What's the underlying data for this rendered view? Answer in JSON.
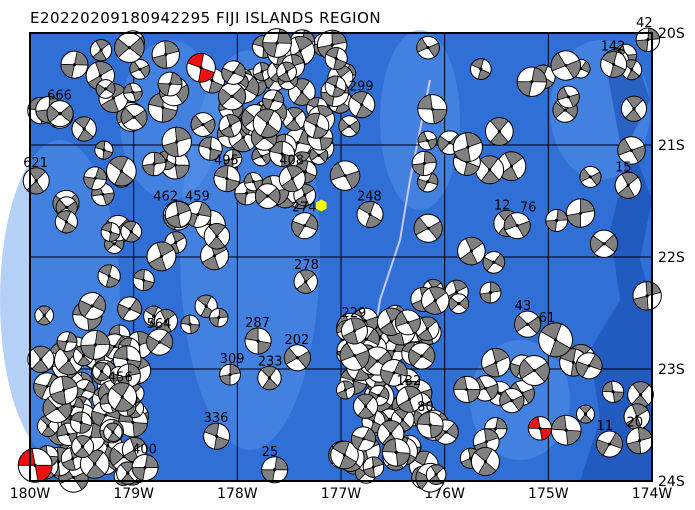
{
  "title": "E20220209180942295 FIJI ISLANDS REGION",
  "map": {
    "lon_range_w": [
      180,
      174
    ],
    "lat_range_s": [
      20,
      24
    ],
    "lon_ticks": [
      "180W",
      "179W",
      "178W",
      "177W",
      "176W",
      "175W",
      "174W"
    ],
    "lat_ticks": [
      "20S",
      "21S",
      "22S",
      "23S",
      "24S"
    ],
    "ocean_color": "#2f6fd6",
    "ridge_color": "#5b96ea",
    "grid_color": "#000000",
    "epicenter": {
      "lon_w": 176.9,
      "lat_s": 21.54,
      "color": "#ffff00",
      "symbol": "hexagon"
    },
    "mechanism_colors": {
      "compressional": "#808080",
      "dilatational": "#ffffff",
      "highlight": "#ee1111"
    }
  },
  "events": [
    {
      "label": "248",
      "lon_w": 176.72,
      "lat_s": 21.62,
      "size": 1,
      "rot": 30
    },
    {
      "label": "274",
      "lon_w": 177.35,
      "lat_s": 21.72,
      "size": 1,
      "rot": 120
    },
    {
      "label": "278",
      "lon_w": 177.34,
      "lat_s": 22.22,
      "size": 0.9,
      "rot": 60
    },
    {
      "label": "287",
      "lon_w": 177.8,
      "lat_s": 22.75,
      "size": 1,
      "rot": 10
    },
    {
      "label": "309",
      "lon_w": 178.07,
      "lat_s": 23.05,
      "size": 0.8,
      "rot": 90
    },
    {
      "label": "233",
      "lon_w": 177.69,
      "lat_s": 23.08,
      "size": 0.9,
      "rot": 45
    },
    {
      "label": "202",
      "lon_w": 177.42,
      "lat_s": 22.9,
      "size": 1,
      "rot": 150
    },
    {
      "label": "229",
      "lon_w": 176.87,
      "lat_s": 22.66,
      "size": 1,
      "rot": 75
    },
    {
      "label": "336",
      "lon_w": 178.2,
      "lat_s": 23.6,
      "size": 1,
      "rot": 20
    },
    {
      "label": "400",
      "lon_w": 178.89,
      "lat_s": 23.88,
      "size": 1,
      "rot": 100
    },
    {
      "label": "456",
      "lon_w": 179.11,
      "lat_s": 23.25,
      "size": 1.1,
      "rot": 40
    },
    {
      "label": "564",
      "lon_w": 178.75,
      "lat_s": 22.76,
      "size": 1,
      "rot": 130
    },
    {
      "label": "408",
      "lon_w": 177.47,
      "lat_s": 21.3,
      "size": 1,
      "rot": 65
    },
    {
      "label": "495",
      "lon_w": 178.1,
      "lat_s": 21.3,
      "size": 1,
      "rot": 15
    },
    {
      "label": "459",
      "lon_w": 178.38,
      "lat_s": 21.62,
      "size": 1,
      "rot": 110
    },
    {
      "label": "462",
      "lon_w": 178.57,
      "lat_s": 21.62,
      "size": 1,
      "rot": 80
    },
    {
      "label": "299",
      "lon_w": 176.8,
      "lat_s": 20.64,
      "size": 1,
      "rot": 35
    },
    {
      "label": "621",
      "lon_w": 179.94,
      "lat_s": 21.32,
      "size": 1,
      "rot": 55
    },
    {
      "label": "666",
      "lon_w": 179.71,
      "lat_s": 20.72,
      "size": 1,
      "rot": 140
    },
    {
      "label": "142",
      "lon_w": 174.37,
      "lat_s": 20.28,
      "size": 1,
      "rot": 25
    },
    {
      "label": "42",
      "lon_w": 174.04,
      "lat_s": 20.06,
      "size": 0.9,
      "rot": 95
    },
    {
      "label": "12",
      "lon_w": 175.4,
      "lat_s": 21.7,
      "size": 1,
      "rot": 50
    },
    {
      "label": "76",
      "lon_w": 175.3,
      "lat_s": 21.72,
      "size": 1,
      "rot": 160
    },
    {
      "label": "132",
      "lon_w": 176.34,
      "lat_s": 23.27,
      "size": 1,
      "rot": 70
    },
    {
      "label": "80",
      "lon_w": 176.14,
      "lat_s": 23.5,
      "size": 1,
      "rot": 5
    },
    {
      "label": "11",
      "lon_w": 174.41,
      "lat_s": 23.67,
      "size": 1,
      "rot": 120
    },
    {
      "label": "20",
      "lon_w": 174.12,
      "lat_s": 23.64,
      "size": 1,
      "rot": 85
    },
    {
      "label": "61",
      "lon_w": 174.93,
      "lat_s": 22.74,
      "size": 1.3,
      "rot": 30
    },
    {
      "label": "43",
      "lon_w": 175.2,
      "lat_s": 22.6,
      "size": 1,
      "rot": 145
    },
    {
      "label": "15",
      "lon_w": 174.23,
      "lat_s": 21.36,
      "size": 1,
      "rot": 60
    },
    {
      "label": "25",
      "lon_w": 177.64,
      "lat_s": 23.9,
      "size": 1,
      "rot": 100
    },
    {
      "label": "",
      "lon_w": 178.35,
      "lat_s": 20.31,
      "size": 1.1,
      "rot": 20,
      "highlight": true
    },
    {
      "label": "",
      "lon_w": 179.95,
      "lat_s": 23.86,
      "size": 1.3,
      "rot": 0,
      "highlight": true
    },
    {
      "label": "",
      "lon_w": 175.08,
      "lat_s": 23.53,
      "size": 0.9,
      "rot": 0,
      "highlight": true
    }
  ]
}
